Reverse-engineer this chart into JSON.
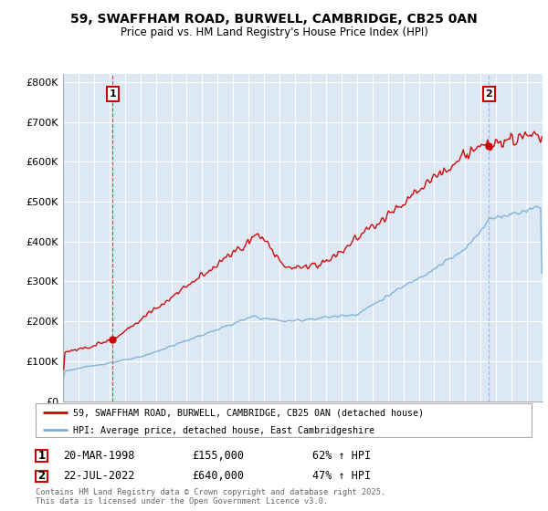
{
  "title": "59, SWAFFHAM ROAD, BURWELL, CAMBRIDGE, CB25 0AN",
  "subtitle": "Price paid vs. HM Land Registry's House Price Index (HPI)",
  "legend_line1": "59, SWAFFHAM ROAD, BURWELL, CAMBRIDGE, CB25 0AN (detached house)",
  "legend_line2": "HPI: Average price, detached house, East Cambridgeshire",
  "sale1_date": "20-MAR-1998",
  "sale1_price": "£155,000",
  "sale1_hpi": "62% ↑ HPI",
  "sale2_date": "22-JUL-2022",
  "sale2_price": "£640,000",
  "sale2_hpi": "47% ↑ HPI",
  "copyright": "Contains HM Land Registry data © Crown copyright and database right 2025.\nThis data is licensed under the Open Government Licence v3.0.",
  "house_color": "#cc0000",
  "hpi_color": "#7aadd4",
  "vline1_color": "#cc0000",
  "vline2_color": "#7aadd4",
  "background_color": "#ffffff",
  "chart_bg_color": "#dce9f5",
  "grid_color": "#ffffff",
  "ytick_labels": [
    "£0",
    "£100K",
    "£200K",
    "£300K",
    "£400K",
    "£500K",
    "£600K",
    "£700K",
    "£800K"
  ],
  "yticks": [
    0,
    100000,
    200000,
    300000,
    400000,
    500000,
    600000,
    700000,
    800000
  ]
}
